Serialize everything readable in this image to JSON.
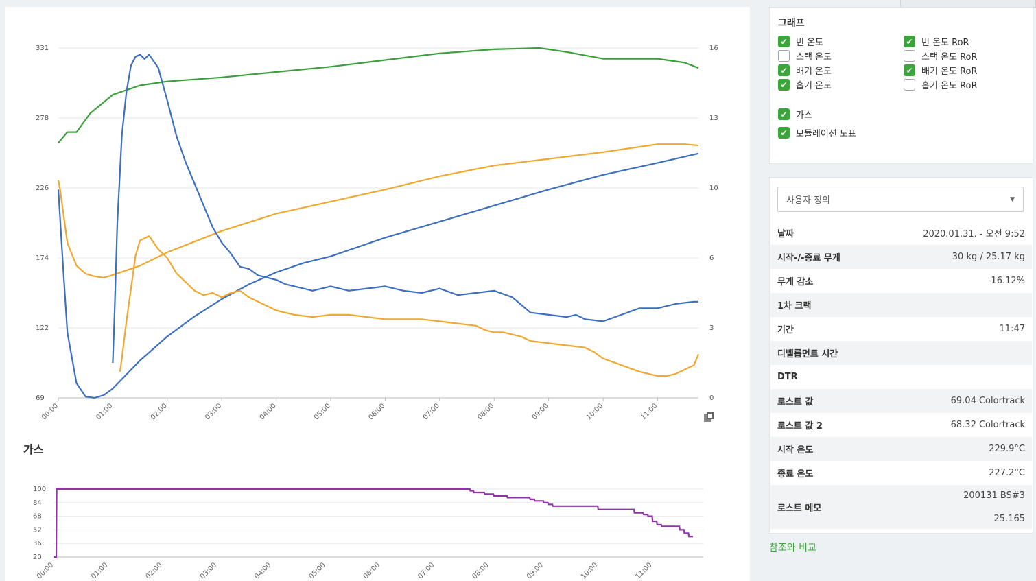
{
  "main_chart": {
    "y_left_ticks": [
      "331",
      "278",
      "226",
      "174",
      "122",
      "69"
    ],
    "y_right_ticks": [
      "16",
      "13",
      "10",
      "6",
      "3",
      "0"
    ],
    "x_ticks": [
      "00:00",
      "01:00",
      "02:00",
      "03:00",
      "04:00",
      "05:00",
      "06:00",
      "07:00",
      "08:00",
      "09:00",
      "10:00",
      "11:00"
    ]
  },
  "gas_chart": {
    "title": "가스",
    "y_ticks": [
      "100",
      "84",
      "68",
      "52",
      "36",
      "20"
    ],
    "x_ticks": [
      "00:00",
      "01:00",
      "02:00",
      "03:00",
      "04:00",
      "05:00",
      "06:00",
      "07:00",
      "08:00",
      "09:00",
      "10:00",
      "11:00"
    ]
  },
  "chart_data": [
    {
      "type": "line",
      "x_unit": "minutes",
      "y_left_range": [
        69,
        331
      ],
      "y_right_range": [
        0,
        16
      ],
      "grid": true,
      "series": [
        {
          "color": "#3d9e3d",
          "axis": "left",
          "x": [
            0,
            10,
            20,
            35,
            60,
            90,
            120,
            180,
            240,
            300,
            360,
            420,
            480,
            530,
            560,
            600,
            660,
            690,
            705
          ],
          "y": [
            260,
            268,
            268,
            282,
            296,
            303,
            306,
            309,
            313,
            317,
            322,
            327,
            330,
            331,
            328,
            323,
            323,
            320,
            316
          ]
        },
        {
          "color": "#f0a830",
          "axis": "left",
          "x": [
            0,
            2,
            5,
            10,
            20,
            30,
            40,
            50,
            60,
            90,
            120,
            180,
            240,
            300,
            360,
            420,
            480,
            540,
            600,
            660,
            690,
            705
          ],
          "y": [
            232,
            225,
            210,
            185,
            168,
            162,
            160,
            159,
            161,
            168,
            178,
            194,
            207,
            216,
            225,
            235,
            243,
            248,
            253,
            259,
            259,
            258
          ]
        },
        {
          "color": "#3d6fc0",
          "axis": "left",
          "x": [
            0,
            5,
            10,
            20,
            30,
            40,
            50,
            60,
            90,
            120,
            150,
            180,
            210,
            240,
            270,
            300,
            360,
            420,
            480,
            540,
            600,
            660,
            705
          ],
          "y": [
            225,
            170,
            118,
            80,
            70,
            69,
            71,
            76,
            97,
            115,
            130,
            143,
            154,
            163,
            170,
            175,
            189,
            201,
            213,
            225,
            236,
            245,
            252
          ]
        },
        {
          "color": "#3d6fc0",
          "axis": "right",
          "x": [
            60,
            62,
            65,
            70,
            75,
            80,
            85,
            90,
            95,
            100,
            110,
            120,
            130,
            140,
            150,
            160,
            170,
            180,
            190,
            200,
            210,
            220,
            230,
            240,
            250,
            260,
            270,
            280,
            300,
            320,
            340,
            360,
            380,
            400,
            420,
            440,
            460,
            480,
            500,
            520,
            540,
            560,
            570,
            580,
            600,
            620,
            640,
            660,
            680,
            700,
            705
          ],
          "y": [
            1.6,
            4,
            8,
            12,
            14,
            15.2,
            15.6,
            15.7,
            15.5,
            15.7,
            15.1,
            13.6,
            12,
            10.8,
            9.8,
            8.8,
            7.8,
            7.1,
            6.6,
            6,
            5.9,
            5.6,
            5.5,
            5.4,
            5.2,
            5.1,
            5,
            4.9,
            5.1,
            4.9,
            5,
            5.1,
            4.9,
            4.8,
            5,
            4.7,
            4.8,
            4.9,
            4.6,
            3.9,
            3.8,
            3.7,
            3.8,
            3.6,
            3.5,
            3.8,
            4.1,
            4.1,
            4.3,
            4.4,
            4.4
          ]
        },
        {
          "color": "#f0a830",
          "axis": "right",
          "x": [
            68,
            70,
            72,
            75,
            80,
            85,
            90,
            95,
            100,
            105,
            110,
            120,
            130,
            140,
            150,
            160,
            170,
            180,
            190,
            200,
            210,
            220,
            230,
            240,
            260,
            280,
            300,
            320,
            340,
            360,
            380,
            400,
            420,
            440,
            460,
            470,
            480,
            490,
            500,
            510,
            520,
            540,
            560,
            580,
            590,
            600,
            620,
            640,
            660,
            670,
            680,
            690,
            700,
            705
          ],
          "y": [
            1.2,
            1.8,
            2.5,
            3.5,
            5,
            6.5,
            7.2,
            7.3,
            7.4,
            7.1,
            6.8,
            6.4,
            5.7,
            5.3,
            4.9,
            4.7,
            4.8,
            4.6,
            4.8,
            4.9,
            4.6,
            4.4,
            4.2,
            4.0,
            3.8,
            3.7,
            3.8,
            3.8,
            3.7,
            3.6,
            3.6,
            3.6,
            3.5,
            3.4,
            3.3,
            3.1,
            3.0,
            3.0,
            2.9,
            2.8,
            2.6,
            2.5,
            2.4,
            2.3,
            2.1,
            1.8,
            1.5,
            1.2,
            1,
            1,
            1.1,
            1.3,
            1.5,
            2
          ]
        }
      ]
    },
    {
      "type": "line",
      "x_unit": "minutes",
      "y_range": [
        20,
        100
      ],
      "grid": true,
      "series": [
        {
          "color": "#8e33a8",
          "x": [
            0,
            3,
            3.5,
            459,
            459.5,
            463,
            463.5,
            475,
            475.5,
            485,
            485.5,
            500,
            500.5,
            525,
            525.5,
            530,
            530.5,
            540,
            540.5,
            545,
            545.5,
            550,
            550.5,
            600,
            600.5,
            640,
            640.5,
            650,
            650.5,
            655,
            655.5,
            660,
            660.5,
            665,
            665.5,
            670,
            670.5,
            690,
            690.5,
            695,
            695.5,
            700,
            700.5,
            705
          ],
          "y": [
            20,
            20,
            100,
            100,
            98,
            98,
            96,
            96,
            94,
            94,
            92,
            92,
            90,
            90,
            88,
            88,
            86,
            86,
            84,
            84,
            82,
            82,
            80,
            80,
            76,
            76,
            72,
            72,
            70,
            70,
            68,
            68,
            62,
            62,
            58,
            58,
            56,
            56,
            52,
            52,
            48,
            48,
            44,
            44
          ]
        }
      ]
    }
  ],
  "graph_panel": {
    "title": "그래프",
    "items": [
      {
        "label": "빈 온도",
        "checked": true
      },
      {
        "label": "스택 온도",
        "checked": false
      },
      {
        "label": "배기 온도",
        "checked": true
      },
      {
        "label": "흡기 온도",
        "checked": true
      },
      {
        "label": "빈 온도 RoR",
        "checked": true
      },
      {
        "label": "스택 온도 RoR",
        "checked": false
      },
      {
        "label": "배기 온도 RoR",
        "checked": true
      },
      {
        "label": "흡기 온도 RoR",
        "checked": false
      },
      {
        "label": "가스",
        "checked": true
      },
      {
        "label": "모듈레이션 도표",
        "checked": true
      }
    ]
  },
  "info_panel": {
    "select_value": "사용자 정의",
    "rows": [
      {
        "label": "날짜",
        "value": "2020.01.31. - 오전 9:52"
      },
      {
        "label": "시작-/-종료 무게",
        "value": "30 kg / 25.17 kg"
      },
      {
        "label": "무게 감소",
        "value": "-16.12%"
      },
      {
        "label": "1차 크랙",
        "value": ""
      },
      {
        "label": "기간",
        "value": "11:47"
      },
      {
        "label": "디벨롭먼트 시간",
        "value": ""
      },
      {
        "label": "DTR",
        "value": ""
      },
      {
        "label": "로스트 값",
        "value": "69.04 Colortrack"
      },
      {
        "label": "로스트 값 2",
        "value": "68.32 Colortrack"
      },
      {
        "label": "시작 온도",
        "value": "229.9°C"
      },
      {
        "label": "종료 온도",
        "value": "227.2°C"
      }
    ],
    "memo_label": "로스트 메모",
    "memo_line1": "200131 BS#3",
    "memo_line2": "25.165"
  },
  "compare_link": "참조와 비교",
  "colors": {
    "accent_green": "#3aa53a",
    "bean": "#3d6fc0",
    "exhaust": "#f0a830",
    "inlet": "#3d9e3d",
    "gas": "#8e33a8"
  }
}
